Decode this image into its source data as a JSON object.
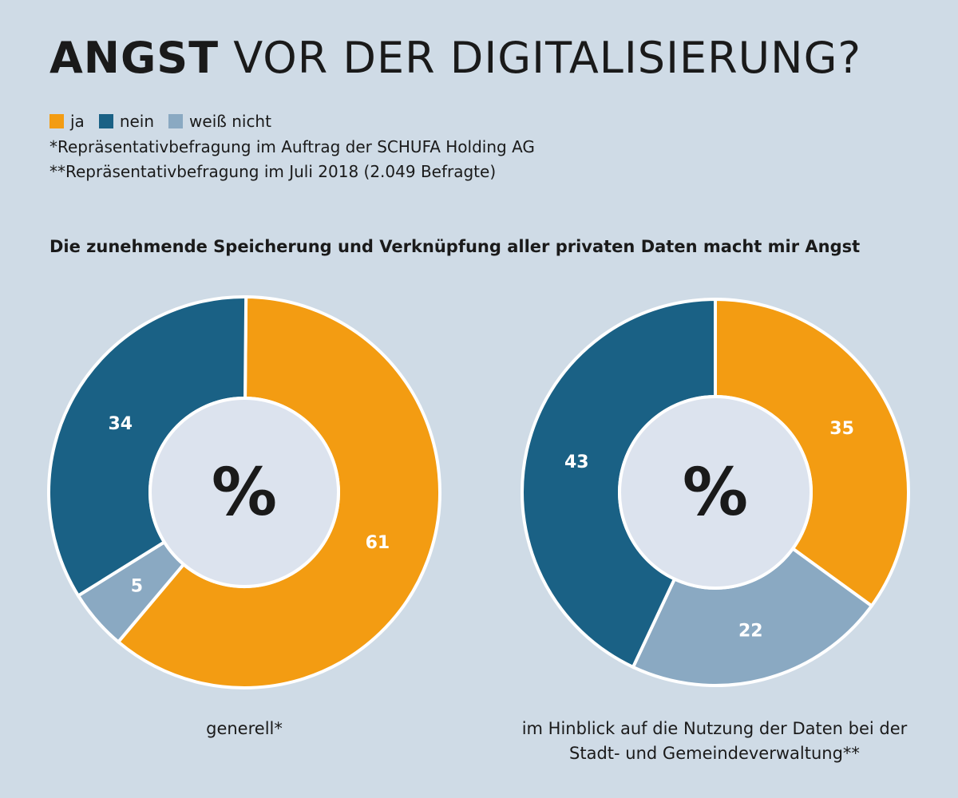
{
  "title": {
    "bold": "ANGST",
    "light": "VOR DER DIGITALISIERUNG?"
  },
  "legend": [
    {
      "label": "ja",
      "color": "#f39c12"
    },
    {
      "label": "nein",
      "color": "#1a6185"
    },
    {
      "label": "weiß nicht",
      "color": "#8aa9c2"
    }
  ],
  "notes": {
    "note1": "*Repräsentativbefragung im Auftrag der SCHUFA Holding AG",
    "note2": "**Repräsentativbefragung im Juli 2018 (2.049 Befragte)"
  },
  "subtitle": "Die zunehmende Speicherung und Verknüpfung aller privaten Daten macht mir Angst",
  "chart_data": [
    {
      "type": "pie",
      "donut": true,
      "center_label": "%",
      "caption": "generell*",
      "categories": [
        "ja",
        "weiß nicht",
        "nein"
      ],
      "values": [
        61,
        5,
        34
      ],
      "colors": [
        "#f39c12",
        "#8aa9c2",
        "#1a6185"
      ]
    },
    {
      "type": "pie",
      "donut": true,
      "center_label": "%",
      "caption": "im Hinblick auf die Nutzung der Daten bei der Stadt- und Gemeindeverwaltung**",
      "categories": [
        "ja",
        "weiß nicht",
        "nein"
      ],
      "values": [
        35,
        22,
        43
      ],
      "colors": [
        "#f39c12",
        "#8aa9c2",
        "#1a6185"
      ]
    }
  ]
}
